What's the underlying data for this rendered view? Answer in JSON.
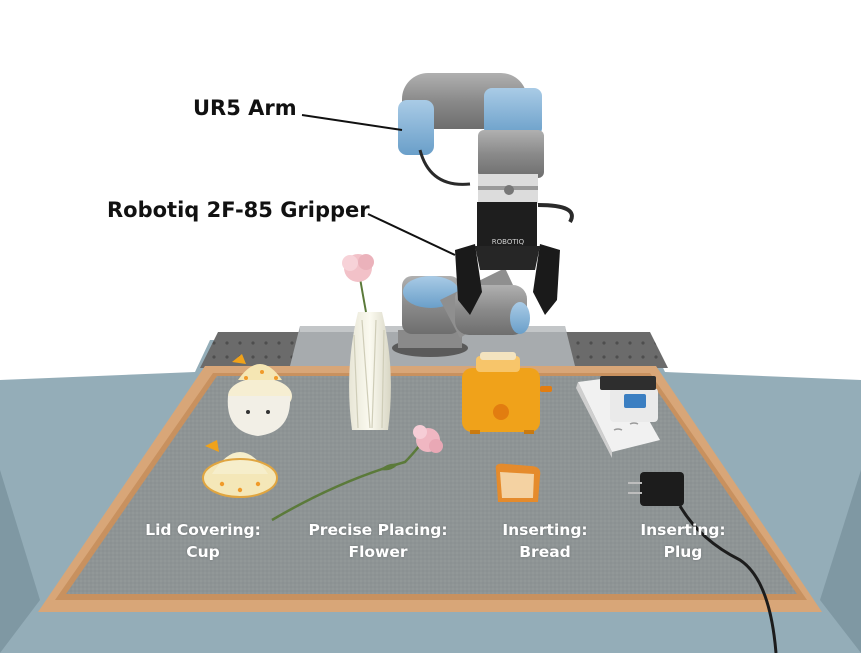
{
  "labels": {
    "arm": "UR5 Arm",
    "gripper": "Robotiq 2F-85 Gripper"
  },
  "gripper_brand": "ROBOTIQ",
  "tasks": [
    {
      "line1": "Lid Covering:",
      "line2": "Cup"
    },
    {
      "line1": "Precise Placing:",
      "line2": "Flower"
    },
    {
      "line1": "Inserting:",
      "line2": "Bread"
    },
    {
      "line1": "Inserting:",
      "line2": "Plug"
    }
  ],
  "colors": {
    "arm_blue": "#7aaed6",
    "arm_gray": "#8e8e8e",
    "mat": "#8f9596",
    "frame": "#d9a87a",
    "cloth": "#8fa8b3",
    "toaster": "#f0a21a"
  }
}
